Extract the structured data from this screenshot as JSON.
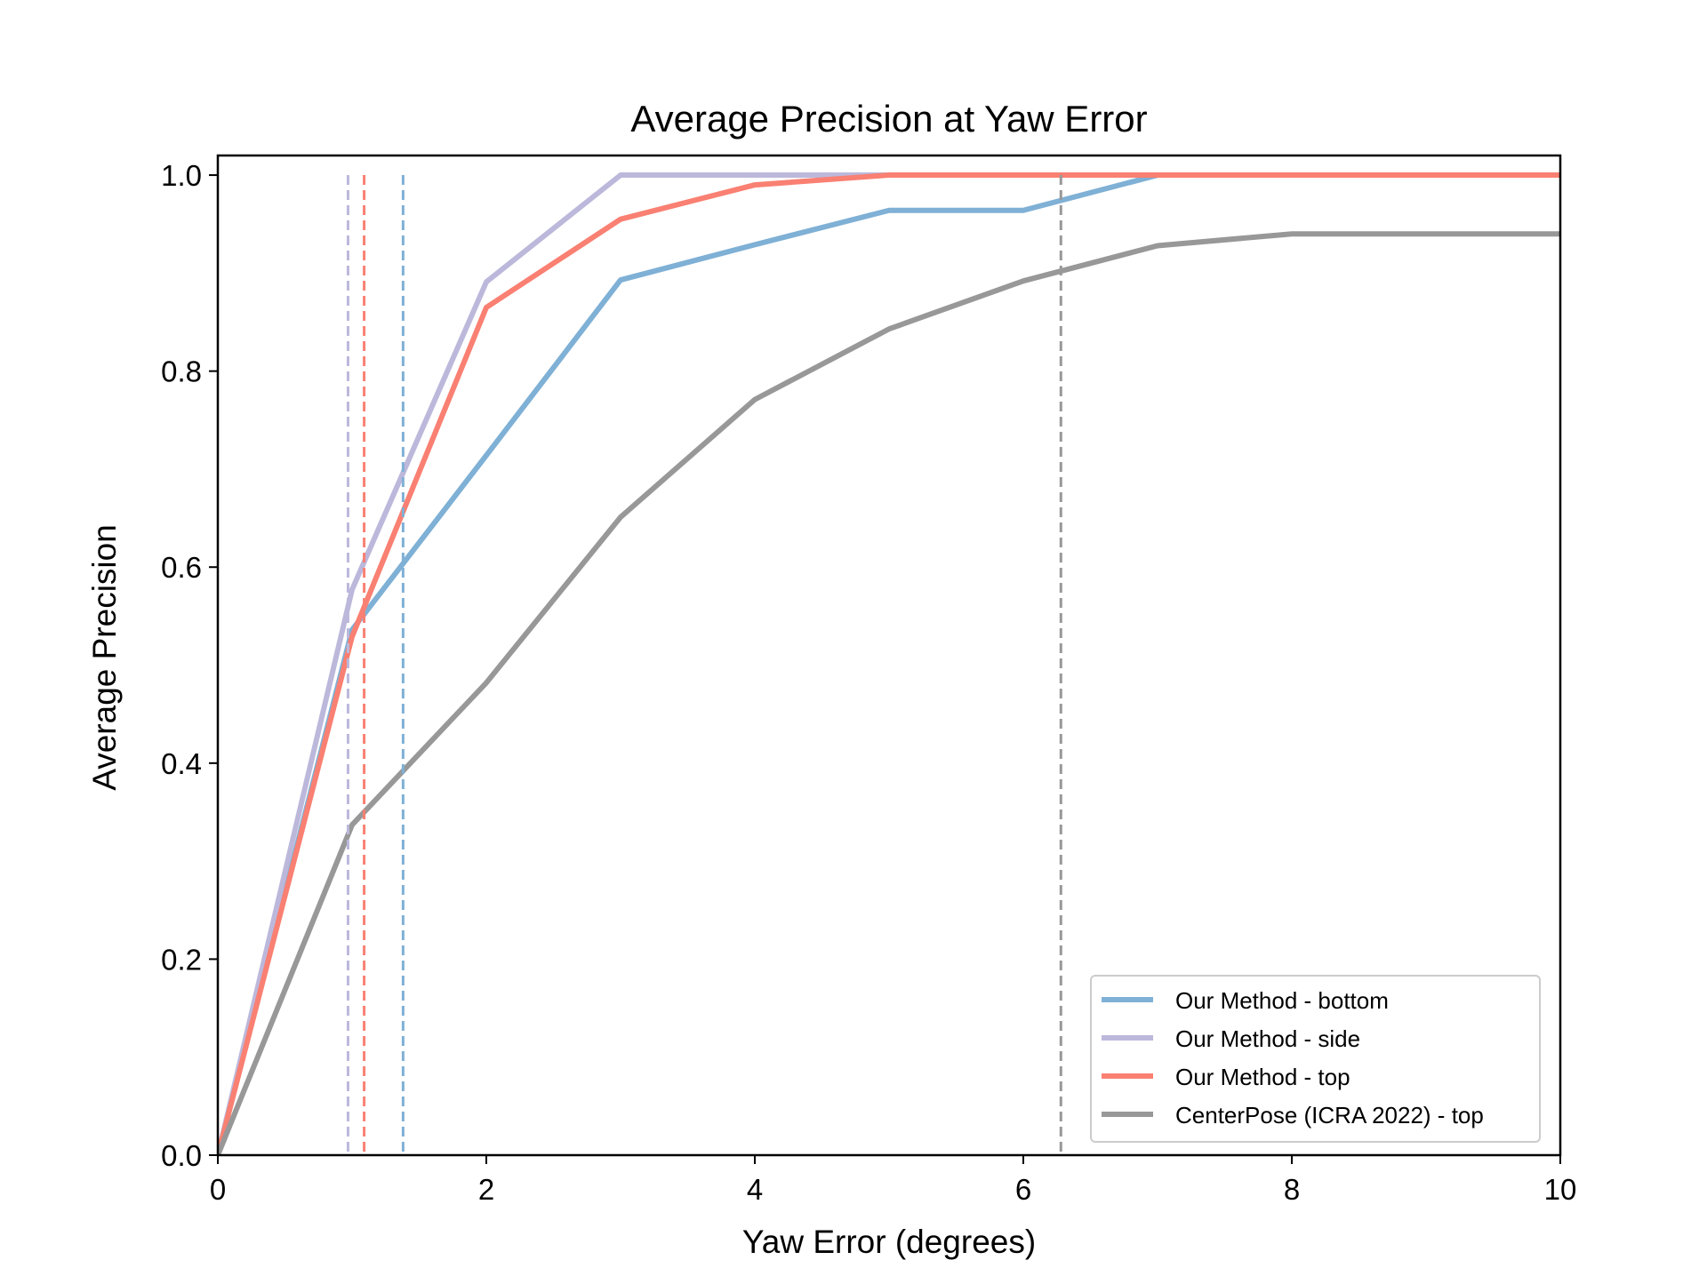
{
  "chart_data": {
    "type": "line",
    "title": "Average Precision at Yaw Error",
    "xlabel": "Yaw Error (degrees)",
    "ylabel": "Average Precision",
    "xlim": [
      0,
      10
    ],
    "ylim": [
      0,
      1.02
    ],
    "xticks": [
      0,
      2,
      4,
      6,
      8,
      10
    ],
    "xtick_labels": [
      "0",
      "2",
      "4",
      "6",
      "8",
      "10"
    ],
    "yticks": [
      0.0,
      0.2,
      0.4,
      0.6,
      0.8,
      1.0
    ],
    "ytick_labels": [
      "0.0",
      "0.2",
      "0.4",
      "0.6",
      "0.8",
      "1.0"
    ],
    "grid": false,
    "legend_position": "lower-right",
    "series": [
      {
        "name": "Our Method - bottom",
        "color": "#7fb0d5",
        "x": [
          0,
          1,
          2,
          3,
          4,
          5,
          6,
          7,
          8,
          9,
          10
        ],
        "y": [
          0.0,
          0.536,
          0.714,
          0.893,
          0.929,
          0.964,
          0.964,
          1.0,
          1.0,
          1.0,
          1.0
        ],
        "median_line": 1.38
      },
      {
        "name": "Our Method - side",
        "color": "#bcb8db",
        "x": [
          0,
          1,
          2,
          3,
          4,
          5,
          6,
          7,
          8,
          9,
          10
        ],
        "y": [
          0.0,
          0.577,
          0.891,
          1.0,
          1.0,
          1.0,
          1.0,
          1.0,
          1.0,
          1.0,
          1.0
        ],
        "median_line": 0.97
      },
      {
        "name": "Our Method - top",
        "color": "#f98072",
        "x": [
          0,
          1,
          2,
          3,
          4,
          5,
          6,
          7,
          8,
          9,
          10
        ],
        "y": [
          0.0,
          0.529,
          0.865,
          0.955,
          0.99,
          1.0,
          1.0,
          1.0,
          1.0,
          1.0,
          1.0
        ],
        "median_line": 1.09
      },
      {
        "name": "CenterPose (ICRA 2022) - top",
        "color": "#989898",
        "x": [
          0,
          1,
          2,
          3,
          4,
          5,
          6,
          7,
          8,
          9,
          10
        ],
        "y": [
          0.0,
          0.337,
          0.482,
          0.651,
          0.771,
          0.843,
          0.892,
          0.928,
          0.94,
          0.94,
          0.94
        ],
        "median_line": 6.28
      }
    ]
  }
}
